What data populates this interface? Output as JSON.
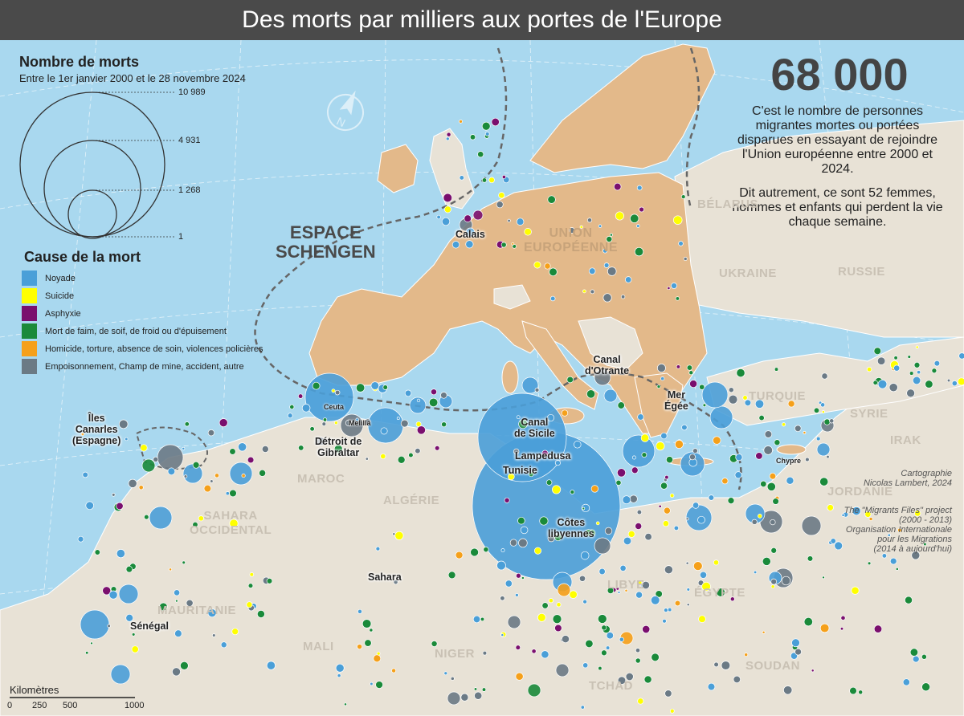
{
  "title": "Des morts par milliers aux portes de l'Europe",
  "legend": {
    "size_title": "Nombre de morts",
    "size_subtitle": "Entre le 1er janvier 2000 et le 28 novembre 2024",
    "size_values": [
      "10 989",
      "4 931",
      "1 268",
      "1"
    ],
    "cause_title": "Cause de la mort",
    "causes": [
      {
        "label": "Noyade",
        "color": "#4a9fd8"
      },
      {
        "label": "Suicide",
        "color": "#ffff00"
      },
      {
        "label": "Asphyxie",
        "color": "#7a0f6e"
      },
      {
        "label": "Mort de faim, de soif, de froid ou d'épuisement",
        "color": "#1a8a3a"
      },
      {
        "label": "Homicide, torture, absence de soin, violences policières",
        "color": "#f5a01a"
      },
      {
        "label": "Empoisonnement, Champ de mine, accident, autre",
        "color": "#6b7a85"
      }
    ]
  },
  "headline": {
    "number": "68 000",
    "text1": "C'est le nombre de personnes migrantes mortes ou portées disparues en essayant de rejoindre l'Union européenne entre 2000 et 2024.",
    "text2": "Dit autrement, ce sont 52 femmes, hommes et enfants qui perdent la vie chaque semaine."
  },
  "credits": {
    "line1": "Cartographie",
    "line2": "Nicolas Lambert, 2024",
    "source1": "The \"Migrants Files\" project",
    "source2": "(2000 - 2013)",
    "source3": "Organisation Internationale",
    "source4": "pour les Migrations",
    "source5": "(2014 à aujourd'hui)"
  },
  "areas": {
    "schengen1": "ESPACE",
    "schengen2": "SCHENGEN",
    "ue1": "UNION",
    "ue2": "EUROPÉENNE",
    "belarus": "BÉLARUS",
    "ukraine": "UKRAINE",
    "russie": "RUSSIE",
    "turquie": "TURQUIE",
    "syrie": "SYRIE",
    "irak": "IRAK",
    "jordanie": "JORDANIE",
    "maroc": "MAROC",
    "algerie": "ALGÉRIE",
    "sahara_occ1": "SAHARA",
    "sahara_occ2": "OCCIDENTAL",
    "mauritanie": "MAURITANIE",
    "mali": "MALI",
    "niger": "NIGER",
    "tchad": "TCHAD",
    "libye": "LIBYE",
    "egypte": "ÉGYPTE",
    "soudan": "SOUDAN"
  },
  "places": {
    "calais": "Calais",
    "canal_otrante1": "Canal",
    "canal_otrante2": "d'Otrante",
    "mer_egee1": "Mer",
    "mer_egee2": "Égée",
    "canaries1": "Îles",
    "canaries2": "Canarles",
    "canaries3": "(Espagne)",
    "ceuta": "Ceuta",
    "melilla": "Melilla",
    "gibraltar1": "Détroit de",
    "gibraltar2": "Gibraltar",
    "canal_sicile1": "Canal",
    "canal_sicile2": "de Sicile",
    "lampedusa": "Lampedusa",
    "tunisie": "Tunisie",
    "libye_cotes1": "Côtes",
    "libye_cotes2": "libyennes",
    "chypre": "Chypre",
    "sahara": "Sahara",
    "senegal": "Sénégal"
  },
  "scale": {
    "title": "Kilomètres",
    "ticks": [
      "0",
      "250",
      "500",
      "1000"
    ]
  }
}
